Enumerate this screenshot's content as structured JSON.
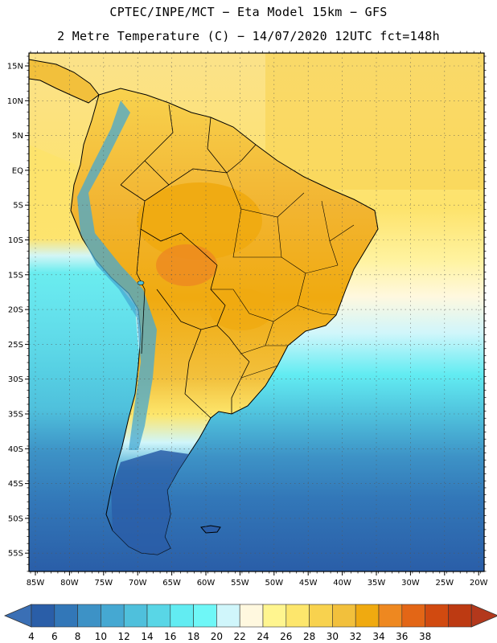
{
  "header": {
    "line1": "CPTEC/INPE/MCT  −   Eta Model 15km  −  GFS",
    "line2": "2 Metre Temperature (C)  −  14/07/2020 12UTC fct=148h"
  },
  "axes": {
    "lat_labels": [
      "15N",
      "10N",
      "5N",
      "EQ",
      "5S",
      "10S",
      "15S",
      "20S",
      "25S",
      "30S",
      "35S",
      "40S",
      "45S",
      "50S",
      "55S"
    ],
    "lon_labels": [
      "85W",
      "80W",
      "75W",
      "70W",
      "65W",
      "60W",
      "55W",
      "50W",
      "45W",
      "40W",
      "35W",
      "30W",
      "25W",
      "20W"
    ]
  },
  "colorbar": {
    "labels": [
      "4",
      "6",
      "8",
      "10",
      "12",
      "14",
      "16",
      "18",
      "20",
      "22",
      "24",
      "26",
      "28",
      "30",
      "32",
      "34",
      "36",
      "38"
    ],
    "colors": [
      "#2a5ea8",
      "#3277b8",
      "#3d92c6",
      "#45a8d2",
      "#4fc0dc",
      "#59d6e6",
      "#62ecf2",
      "#6ff7f7",
      "#d0f6fb",
      "#fff8df",
      "#fff58f",
      "#fde66c",
      "#f8d24e",
      "#f2c03c",
      "#f0aa10",
      "#ee8820",
      "#e36616",
      "#d14a10",
      "#bd3a12"
    ],
    "low_color": "#3a6fb5",
    "high_color": "#b3381c"
  }
}
